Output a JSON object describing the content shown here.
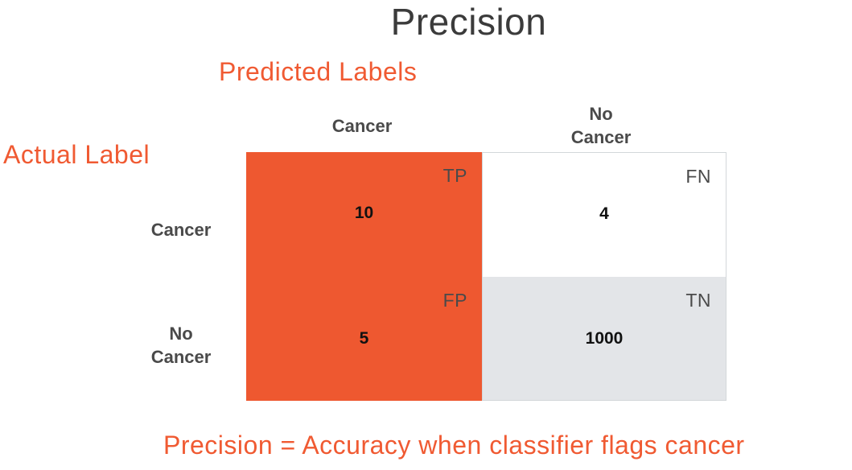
{
  "title": "Precision",
  "predicted_header": "Predicted Labels",
  "actual_header": "Actual Label",
  "columns": [
    {
      "lines": [
        "Cancer"
      ]
    },
    {
      "lines": [
        "No",
        "Cancer"
      ]
    }
  ],
  "rows": [
    {
      "lines": [
        "Cancer"
      ]
    },
    {
      "lines": [
        "No",
        "Cancer"
      ]
    }
  ],
  "cells": {
    "tp": {
      "tag": "TP",
      "value": "10",
      "color": "#ee5830"
    },
    "fn": {
      "tag": "FN",
      "value": "4",
      "color": "#ffffff"
    },
    "fp": {
      "tag": "FP",
      "value": "5",
      "color": "#ee5830"
    },
    "tn": {
      "tag": "TN",
      "value": "1000",
      "color": "#e3e5e8"
    }
  },
  "footer": "Precision = Accuracy when classifier flags cancer",
  "colors": {
    "accent": "#f05a32",
    "text": "#4a4a4a",
    "neutral_cell": "#e3e5e8"
  }
}
